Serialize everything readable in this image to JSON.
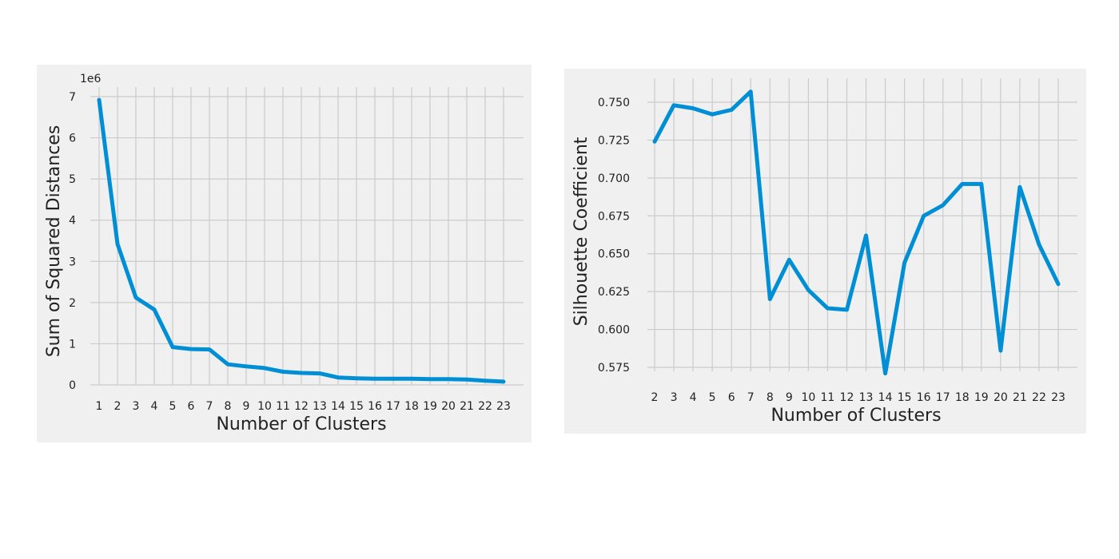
{
  "chart_data": [
    {
      "type": "line",
      "xlabel": "Number of Clusters",
      "ylabel": "Sum of Squared Distances",
      "y_offset_label": "1e6",
      "x": [
        1,
        2,
        3,
        4,
        5,
        6,
        7,
        8,
        9,
        10,
        11,
        12,
        13,
        14,
        15,
        16,
        17,
        18,
        19,
        20,
        21,
        22,
        23
      ],
      "series": [
        {
          "values": [
            6.92,
            3.42,
            2.12,
            1.83,
            0.92,
            0.87,
            0.86,
            0.5,
            0.45,
            0.41,
            0.32,
            0.29,
            0.28,
            0.18,
            0.16,
            0.15,
            0.15,
            0.15,
            0.14,
            0.14,
            0.13,
            0.1,
            0.08
          ]
        }
      ],
      "xlim": [
        1,
        23
      ],
      "ylim": [
        0,
        7
      ],
      "yticks": [
        0,
        1,
        2,
        3,
        4,
        5,
        6,
        7
      ],
      "ytick_labels": [
        "0",
        "1",
        "2",
        "3",
        "4",
        "5",
        "6",
        "7"
      ],
      "grid": true,
      "color": "#008fd5",
      "background": "#f0f0f0"
    },
    {
      "type": "line",
      "xlabel": "Number of Clusters",
      "ylabel": "Silhouette Coefficient",
      "x": [
        2,
        3,
        4,
        5,
        6,
        7,
        8,
        9,
        10,
        11,
        12,
        13,
        14,
        15,
        16,
        17,
        18,
        19,
        20,
        21,
        22,
        23
      ],
      "series": [
        {
          "values": [
            0.724,
            0.748,
            0.746,
            0.742,
            0.745,
            0.757,
            0.62,
            0.646,
            0.626,
            0.614,
            0.613,
            0.662,
            0.571,
            0.644,
            0.675,
            0.682,
            0.696,
            0.696,
            0.586,
            0.694,
            0.656,
            0.63
          ]
        }
      ],
      "xlim": [
        2,
        23
      ],
      "ylim": [
        0.575,
        0.75
      ],
      "yticks": [
        0.575,
        0.6,
        0.625,
        0.65,
        0.675,
        0.7,
        0.725,
        0.75
      ],
      "ytick_labels": [
        "0.575",
        "0.600",
        "0.625",
        "0.650",
        "0.675",
        "0.700",
        "0.725",
        "0.750"
      ],
      "grid": true,
      "color": "#008fd5",
      "background": "#f0f0f0"
    }
  ]
}
